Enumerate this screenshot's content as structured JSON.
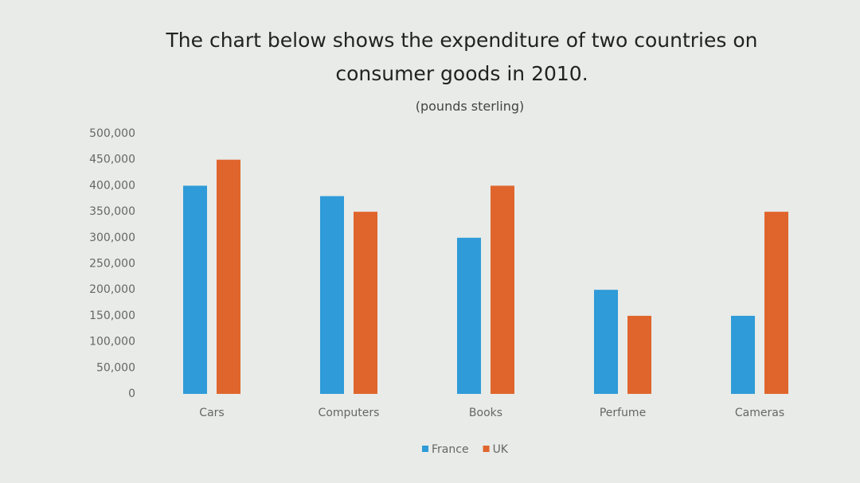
{
  "chart_data": {
    "type": "bar",
    "title": "The chart below shows the expenditure of two countries on consumer goods in 2010.",
    "subtitle": "(pounds sterling)",
    "categories": [
      "Cars",
      "Computers",
      "Books",
      "Perfume",
      "Cameras"
    ],
    "series": [
      {
        "name": "France",
        "color": "#2f9bd8",
        "values": [
          400000,
          380000,
          300000,
          200000,
          150000
        ]
      },
      {
        "name": "UK",
        "color": "#e0652c",
        "values": [
          450000,
          350000,
          400000,
          150000,
          350000
        ]
      }
    ],
    "ylim": [
      0,
      500000
    ],
    "yticks": [
      0,
      {
        "value": 50000,
        "label": "50,000"
      },
      {
        "value": 100000,
        "label": "100,000"
      },
      {
        "value": 150000,
        "label": "150,000"
      },
      {
        "value": 200000,
        "label": "200,000"
      },
      {
        "value": 250000,
        "label": "250,000"
      },
      {
        "value": 300000,
        "label": "300,000"
      },
      {
        "value": 350000,
        "label": "350,000"
      },
      {
        "value": 400000,
        "label": "400,000"
      },
      {
        "value": 450000,
        "label": "450,000"
      },
      {
        "value": 500000,
        "label": "500,000"
      }
    ],
    "grid": false,
    "legend": "bottom"
  }
}
